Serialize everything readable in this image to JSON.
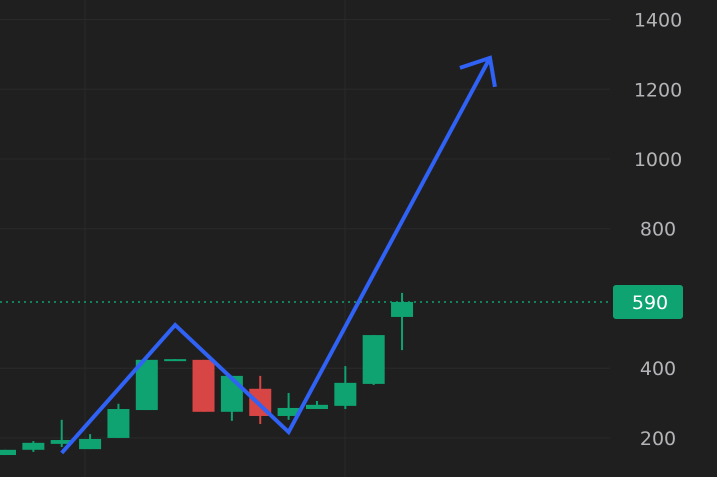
{
  "chart_data": {
    "type": "candlestick",
    "title": "",
    "xlabel": "",
    "ylabel": "",
    "ylim": [
      88,
      1456
    ],
    "y_ticks": [
      "200",
      "400",
      "800",
      "1000",
      "1200",
      "1400"
    ],
    "y_tick_values": [
      200,
      400,
      800,
      1000,
      1200,
      1400
    ],
    "grid": true,
    "candles": [
      {
        "open": 151,
        "high": 166,
        "low": 151,
        "close": 166
      },
      {
        "open": 166,
        "high": 191,
        "low": 160,
        "close": 186
      },
      {
        "open": 183,
        "high": 252,
        "low": 174,
        "close": 194
      },
      {
        "open": 168,
        "high": 211,
        "low": 168,
        "close": 197
      },
      {
        "open": 200,
        "high": 298,
        "low": 200,
        "close": 283
      },
      {
        "open": 280,
        "high": 424,
        "low": 280,
        "close": 424
      },
      {
        "open": 422,
        "high": 426,
        "low": 422,
        "close": 426
      },
      {
        "open": 424,
        "high": 424,
        "low": 275,
        "close": 275
      },
      {
        "open": 275,
        "high": 378,
        "low": 249,
        "close": 378
      },
      {
        "open": 341,
        "high": 378,
        "low": 240,
        "close": 263
      },
      {
        "open": 263,
        "high": 329,
        "low": 252,
        "close": 286
      },
      {
        "open": 283,
        "high": 306,
        "low": 283,
        "close": 295
      },
      {
        "open": 292,
        "high": 406,
        "low": 283,
        "close": 358
      },
      {
        "open": 355,
        "high": 495,
        "low": 352,
        "close": 495
      },
      {
        "open": 547,
        "high": 616,
        "low": 452,
        "close": 590
      }
    ],
    "last_price": {
      "value": 590,
      "label": "590"
    },
    "annotation_arrow": {
      "points": [
        [
          2,
          157
        ],
        [
          6,
          524
        ],
        [
          10,
          217
        ],
        [
          17.1,
          1290
        ]
      ],
      "color": "#2f62f5"
    },
    "colors": {
      "up": "#0ea371",
      "down": "#d84545",
      "background": "#1f1f1f",
      "grid": "#2a2a2a",
      "last_price": "#0ea371"
    }
  }
}
